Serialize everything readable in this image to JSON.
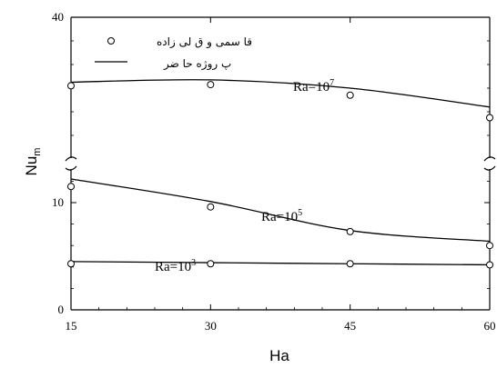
{
  "chart_data": {
    "type": "line",
    "xlabel": "Ha",
    "ylabel": {
      "main": "Nu",
      "sub": "m"
    },
    "x_ticks": [
      "15",
      "30",
      "45",
      "60"
    ],
    "y_ticks": [
      "0",
      "10",
      "40"
    ],
    "xlim": [
      15,
      60
    ],
    "ylim": [
      0,
      40
    ],
    "broken_y_axis": true,
    "grid": false,
    "legend": {
      "placement": "top-left",
      "entries": [
        {
          "marker": "open-circle",
          "label": "قا سمی و ق  لی زاده"
        },
        {
          "marker": "line",
          "label": "پ روژه حا ضر"
        }
      ]
    },
    "series": [
      {
        "label": {
          "main": "Ra=10",
          "sup": "3"
        },
        "line": {
          "x": [
            15,
            30,
            45,
            60
          ],
          "y": [
            4.5,
            4.4,
            4.3,
            4.2
          ]
        },
        "points": {
          "x": [
            15,
            30,
            45,
            60
          ],
          "y": [
            4.3,
            4.3,
            4.3,
            4.2
          ]
        }
      },
      {
        "label": {
          "main": "Ra=10",
          "sup": "5"
        },
        "line": {
          "x": [
            15,
            30,
            45,
            60
          ],
          "y": [
            12.2,
            10.1,
            7.4,
            6.4
          ]
        },
        "points": {
          "x": [
            15,
            30,
            45,
            60
          ],
          "y": [
            11.5,
            9.6,
            7.3,
            6.0
          ]
        }
      },
      {
        "label": {
          "main": "Ra=10",
          "sup": "7"
        },
        "line": {
          "x": [
            15,
            30,
            45,
            60
          ],
          "y": [
            34.5,
            34.7,
            34.0,
            32.4
          ]
        },
        "points": {
          "x": [
            15,
            30,
            45,
            60
          ],
          "y": [
            34.2,
            34.3,
            33.4,
            31.5
          ]
        }
      }
    ]
  }
}
